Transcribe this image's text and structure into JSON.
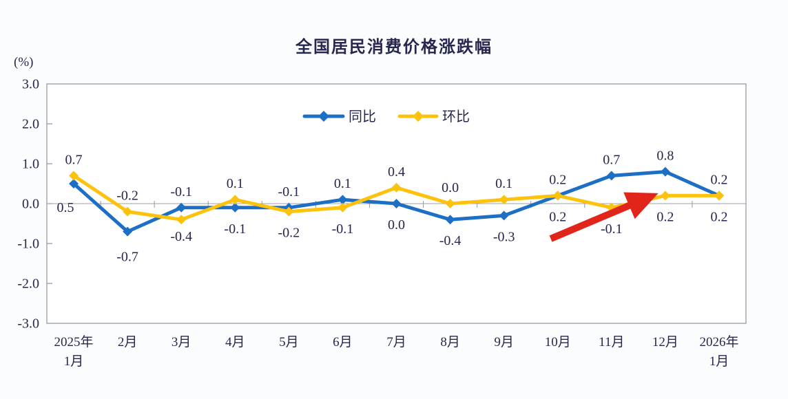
{
  "page": {
    "background": "#fbfcfe"
  },
  "chart_data": {
    "type": "line",
    "title": "全国居民消费价格涨跌幅",
    "unit_label": "(%)",
    "categories": [
      "2025年\n1月",
      "2月",
      "3月",
      "4月",
      "5月",
      "6月",
      "7月",
      "8月",
      "9月",
      "10月",
      "11月",
      "12月",
      "2026年\n1月"
    ],
    "ylim": [
      -3.0,
      3.0
    ],
    "yticks": [
      "3.0",
      "2.0",
      "1.0",
      "0.0",
      "-1.0",
      "-2.0",
      "-3.0"
    ],
    "grid": "zero-line-only",
    "x_tick_style": "category-boundary-ticks-on-zero-line",
    "legend_position": "top-center-inside",
    "axis_color": "#8f939b",
    "zero_line_color": "#9aa0a6",
    "label_color": "#26264e",
    "series": [
      {
        "name": "同比",
        "color": "#1d6fc5",
        "values": [
          0.5,
          -0.7,
          -0.1,
          -0.1,
          -0.1,
          0.1,
          0.0,
          -0.4,
          -0.3,
          0.2,
          0.7,
          0.8,
          0.2
        ],
        "labels": [
          "0.5",
          "-0.7",
          "-0.1",
          "-0.1",
          "-0.1",
          "0.1",
          "0.0",
          "-0.4",
          "-0.3",
          "0.2",
          "0.7",
          "0.8",
          "0.2"
        ],
        "label_sides": [
          "below",
          "below",
          "above",
          "below",
          "above",
          "above",
          "below",
          "below",
          "below",
          "above",
          "above",
          "above",
          "above"
        ],
        "label_offsets": {
          "0": [
            -12,
            4
          ],
          "1": [
            0,
            6
          ]
        }
      },
      {
        "name": "环比",
        "color": "#fcc20c",
        "values": [
          0.7,
          -0.2,
          -0.4,
          0.1,
          -0.2,
          -0.1,
          0.4,
          0.0,
          0.1,
          0.2,
          -0.1,
          0.2,
          0.2
        ],
        "labels": [
          "0.7",
          "-0.2",
          "-0.4",
          "0.1",
          "-0.2",
          "-0.1",
          "0.4",
          "0.0",
          "0.1",
          "0.2",
          "-0.1",
          "0.2",
          "0.2"
        ],
        "label_sides": [
          "above",
          "above",
          "below",
          "above",
          "below",
          "below",
          "above",
          "above",
          "above",
          "below",
          "below",
          "below",
          "below"
        ],
        "label_offsets": {
          "2": [
            0,
            -6
          ]
        }
      }
    ],
    "annotation": {
      "type": "arrow",
      "color": "#e1251b",
      "from": [
        8.87,
        -0.88
      ],
      "to": [
        10.87,
        0.26
      ]
    }
  }
}
